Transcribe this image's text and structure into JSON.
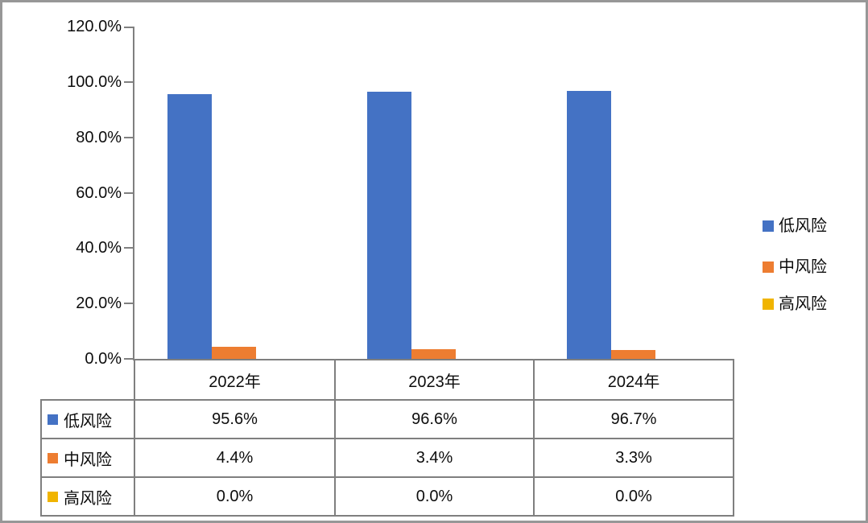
{
  "colors": {
    "low": "#4472C4",
    "mid": "#ED7D31",
    "high": "#F0B400",
    "axis": "#808080",
    "table_border": "#7f7f7f",
    "text": "#0d0d0d",
    "frame": "#979797"
  },
  "chart_data": {
    "type": "bar",
    "categories": [
      "2022年",
      "2023年",
      "2024年"
    ],
    "series": [
      {
        "name": "低风险",
        "color_key": "low",
        "values": [
          95.6,
          96.6,
          96.7
        ]
      },
      {
        "name": "中风险",
        "color_key": "mid",
        "values": [
          4.4,
          3.4,
          3.3
        ]
      },
      {
        "name": "高风险",
        "color_key": "high",
        "values": [
          0.0,
          0.0,
          0.0
        ]
      }
    ],
    "title": "",
    "xlabel": "",
    "ylabel": "",
    "ylim": [
      0,
      120
    ],
    "ytick_step": 20,
    "ytick_labels": [
      "0.0%",
      "20.0%",
      "40.0%",
      "60.0%",
      "80.0%",
      "100.0%",
      "120.0%"
    ],
    "grid": false,
    "legend_position": "right",
    "data_table_shown": true
  },
  "table": {
    "header": [
      "2022年",
      "2023年",
      "2024年"
    ],
    "rows": [
      {
        "label": "低风险",
        "values": [
          "95.6%",
          "96.6%",
          "96.7%"
        ]
      },
      {
        "label": "中风险",
        "values": [
          "4.4%",
          "3.4%",
          "3.3%"
        ]
      },
      {
        "label": "高风险",
        "values": [
          "0.0%",
          "0.0%",
          "0.0%"
        ]
      }
    ]
  }
}
